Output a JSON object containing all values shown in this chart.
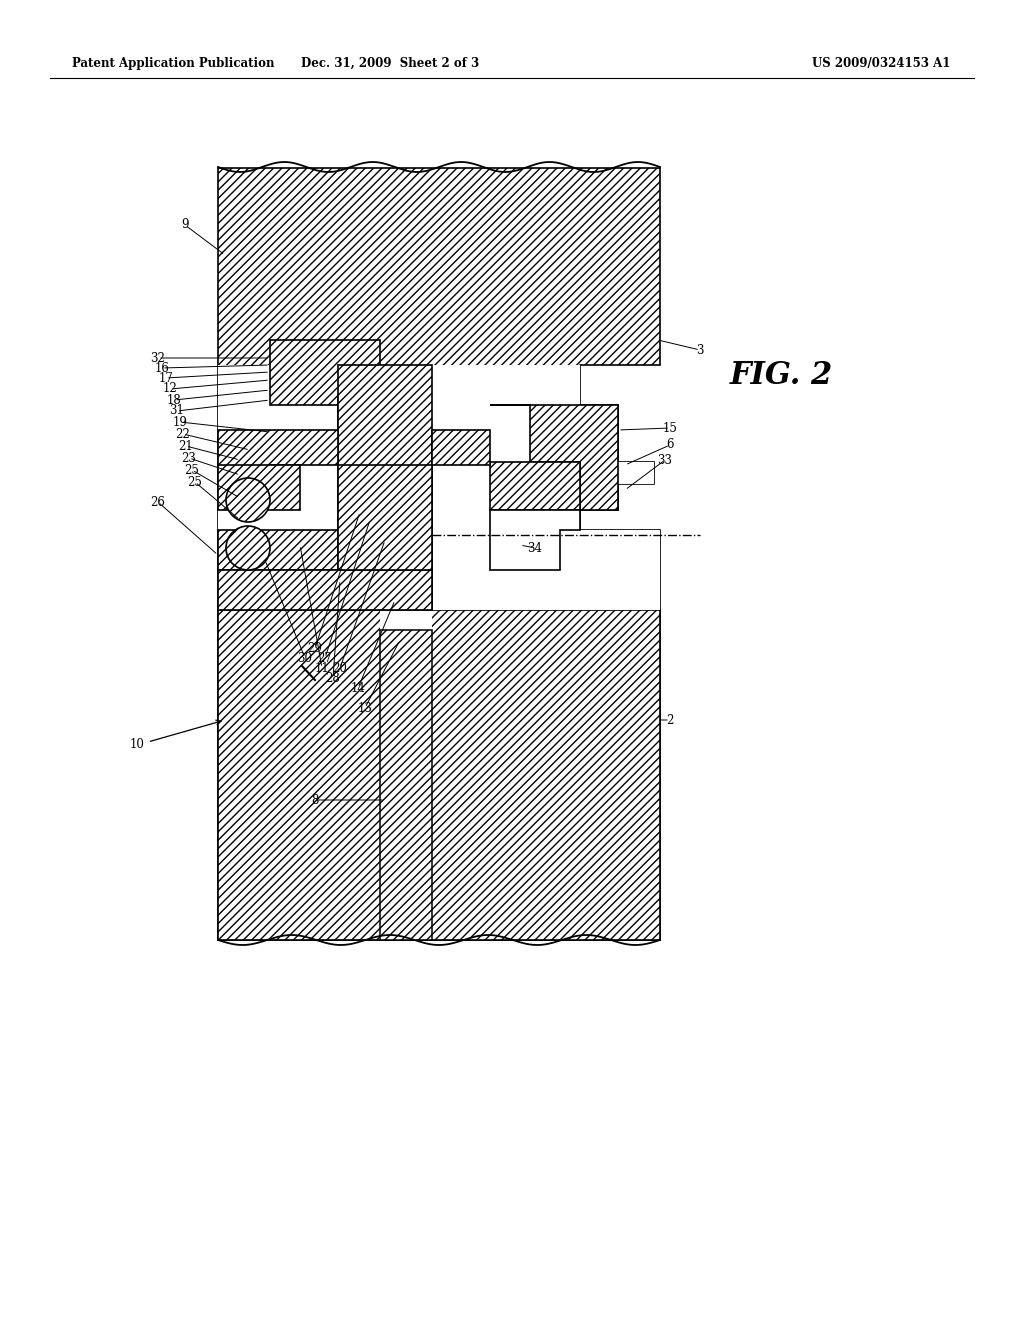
{
  "header_left": "Patent Application Publication",
  "header_mid": "Dec. 31, 2009  Sheet 2 of 3",
  "header_right": "US 2009/0324153 A1",
  "fig_label": "FIG. 2",
  "background_color": "#ffffff"
}
